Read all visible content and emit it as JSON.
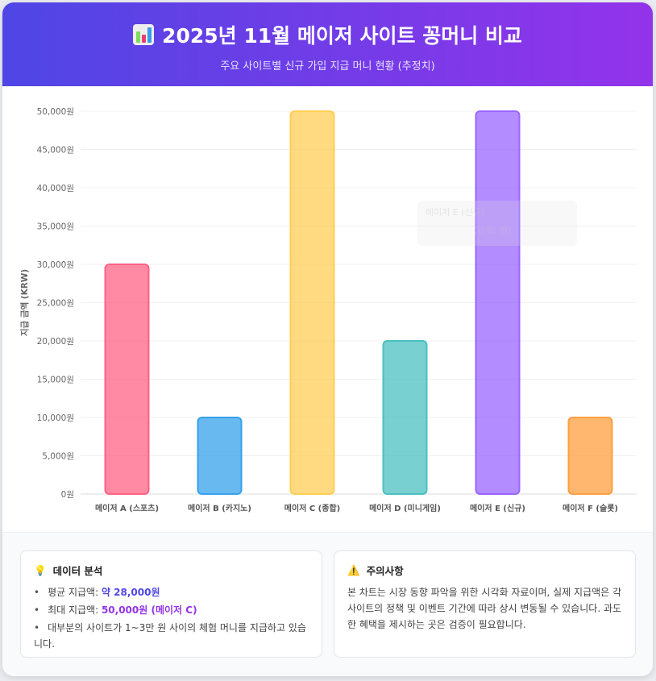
{
  "header": {
    "title": "2025년 11월 메이저 사이트 꽁머니 비교",
    "subtitle": "주요 사이트별 신규 가입 지급 머니 현황 (추정치)",
    "icon": "bar-chart-icon",
    "gradient": [
      "#4f46e5",
      "#9333ea"
    ]
  },
  "chart_data": {
    "type": "bar",
    "title": "",
    "xlabel": "",
    "ylabel": "지급 금액 (KRW)",
    "ylim": [
      0,
      50000
    ],
    "ytick_step": 5000,
    "ytick_suffix": "원",
    "grid": true,
    "categories": [
      "메이저 A (스포츠)",
      "메이저 B (카지노)",
      "메이저 C (종합)",
      "메이저 D (미니게임)",
      "메이저 E (신규)",
      "메이저 F (슬롯)"
    ],
    "values": [
      30000,
      10000,
      50000,
      20000,
      50000,
      10000
    ],
    "colors": [
      "#ff6384",
      "#36a2eb",
      "#ffce56",
      "#4bc0c0",
      "#9966ff",
      "#ff9f40"
    ],
    "tooltip": {
      "title": "메이저 E (신규)",
      "body": "(단위: 원)"
    }
  },
  "analysis": {
    "icon": "lightbulb-icon",
    "title": "데이터 분석",
    "items": [
      {
        "label": "평균 지급액: ",
        "value": "약 28,000원"
      },
      {
        "label": "최대 지급액: ",
        "value": "50,000원 (메이저 C)"
      },
      {
        "label": "대부분의 사이트가 1~3만 원 사이의 체험 머니를 지급하고 있습니다.",
        "value": ""
      }
    ]
  },
  "notice": {
    "icon": "warning-icon",
    "title": "주의사항",
    "text": "본 차트는 시장 동향 파악을 위한 시각화 자료이며, 실제 지급액은 각 사이트의 정책 및 이벤트 기간에 따라 상시 변동될 수 있습니다. 과도한 혜택을 제시하는 곳은 검증이 필요합니다."
  }
}
